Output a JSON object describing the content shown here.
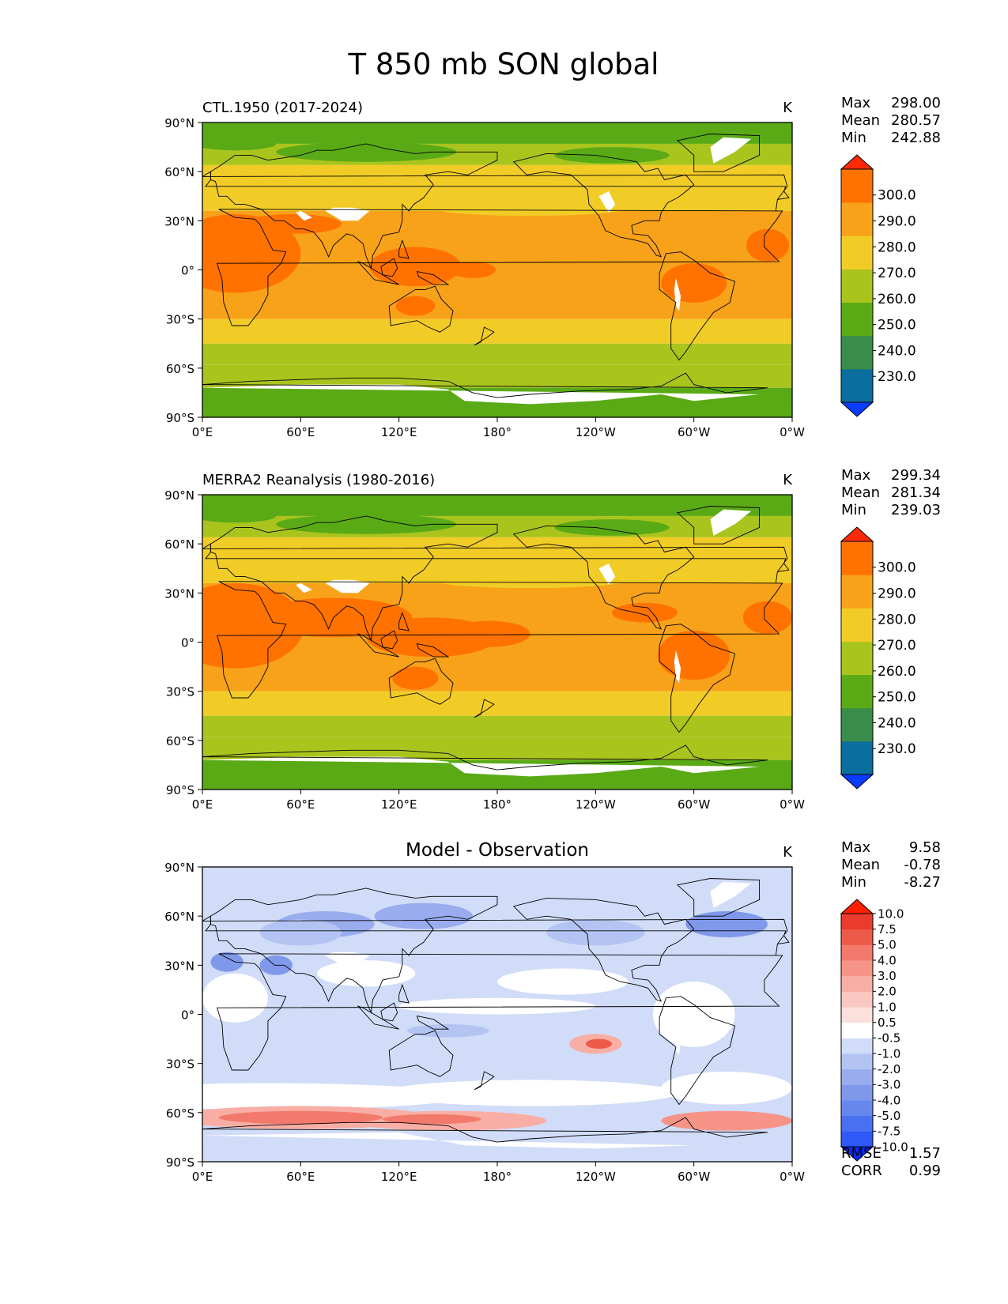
{
  "figure": {
    "title": "T 850 mb SON global"
  },
  "axes": {
    "lat_ticks": [
      "90°N",
      "60°N",
      "30°N",
      "0°",
      "30°S",
      "60°S",
      "90°S"
    ],
    "lon_ticks": [
      "0°E",
      "60°E",
      "120°E",
      "180°",
      "120°W",
      "60°W",
      "0°W"
    ]
  },
  "panels": [
    {
      "title": "CTL.1950 (2017-2024)",
      "title_style": "left",
      "units": "K",
      "stats": [
        {
          "label": "Max",
          "value": "298.00"
        },
        {
          "label": "Mean",
          "value": "280.57"
        },
        {
          "label": "Min",
          "value": "242.88"
        }
      ],
      "colorbar": {
        "labels": [
          "300.0",
          "290.0",
          "280.0",
          "270.0",
          "260.0",
          "250.0",
          "240.0",
          "230.0"
        ],
        "colors": [
          "#0a3cff",
          "#0a6e9e",
          "#3a8c4a",
          "#5aaa16",
          "#aac41e",
          "#f2cc26",
          "#f8a21a",
          "#ff7200",
          "#ff2a0a"
        ]
      },
      "field": "abs_ctl"
    },
    {
      "title": "MERRA2 Reanalysis (1980-2016)",
      "title_style": "left",
      "units": "K",
      "stats": [
        {
          "label": "Max",
          "value": "299.34"
        },
        {
          "label": "Mean",
          "value": "281.34"
        },
        {
          "label": "Min",
          "value": "239.03"
        }
      ],
      "colorbar": {
        "labels": [
          "300.0",
          "290.0",
          "280.0",
          "270.0",
          "260.0",
          "250.0",
          "240.0",
          "230.0"
        ],
        "colors": [
          "#0a3cff",
          "#0a6e9e",
          "#3a8c4a",
          "#5aaa16",
          "#aac41e",
          "#f2cc26",
          "#f8a21a",
          "#ff7200",
          "#ff2a0a"
        ]
      },
      "field": "abs_obs"
    },
    {
      "title": "Model - Observation",
      "title_style": "center",
      "units": "K",
      "stats": [
        {
          "label": "Max",
          "value": "9.58"
        },
        {
          "label": "Mean",
          "value": "-0.78"
        },
        {
          "label": "Min",
          "value": "-8.27"
        }
      ],
      "colorbar": {
        "labels": [
          "10.0",
          "7.5",
          "5.0",
          "4.0",
          "3.0",
          "2.0",
          "1.0",
          "0.5",
          "-0.5",
          "-1.0",
          "-2.0",
          "-3.0",
          "-4.0",
          "-5.0",
          "-7.5",
          "-10.0"
        ],
        "colors": [
          "#0a2cff",
          "#2e58f8",
          "#4a70f2",
          "#6688ee",
          "#8098ea",
          "#98acee",
          "#b4c4f2",
          "#d0dcf8",
          "#ffffff",
          "#fce0dc",
          "#fac8c0",
          "#f8aea4",
          "#f69488",
          "#f27a6c",
          "#ee5a4a",
          "#ea3c2c",
          "#ff2000"
        ]
      },
      "extra_stats": [
        {
          "label": "RMSE",
          "value": "1.57"
        },
        {
          "label": "CORR",
          "value": "0.99"
        }
      ],
      "field": "diff"
    }
  ]
}
